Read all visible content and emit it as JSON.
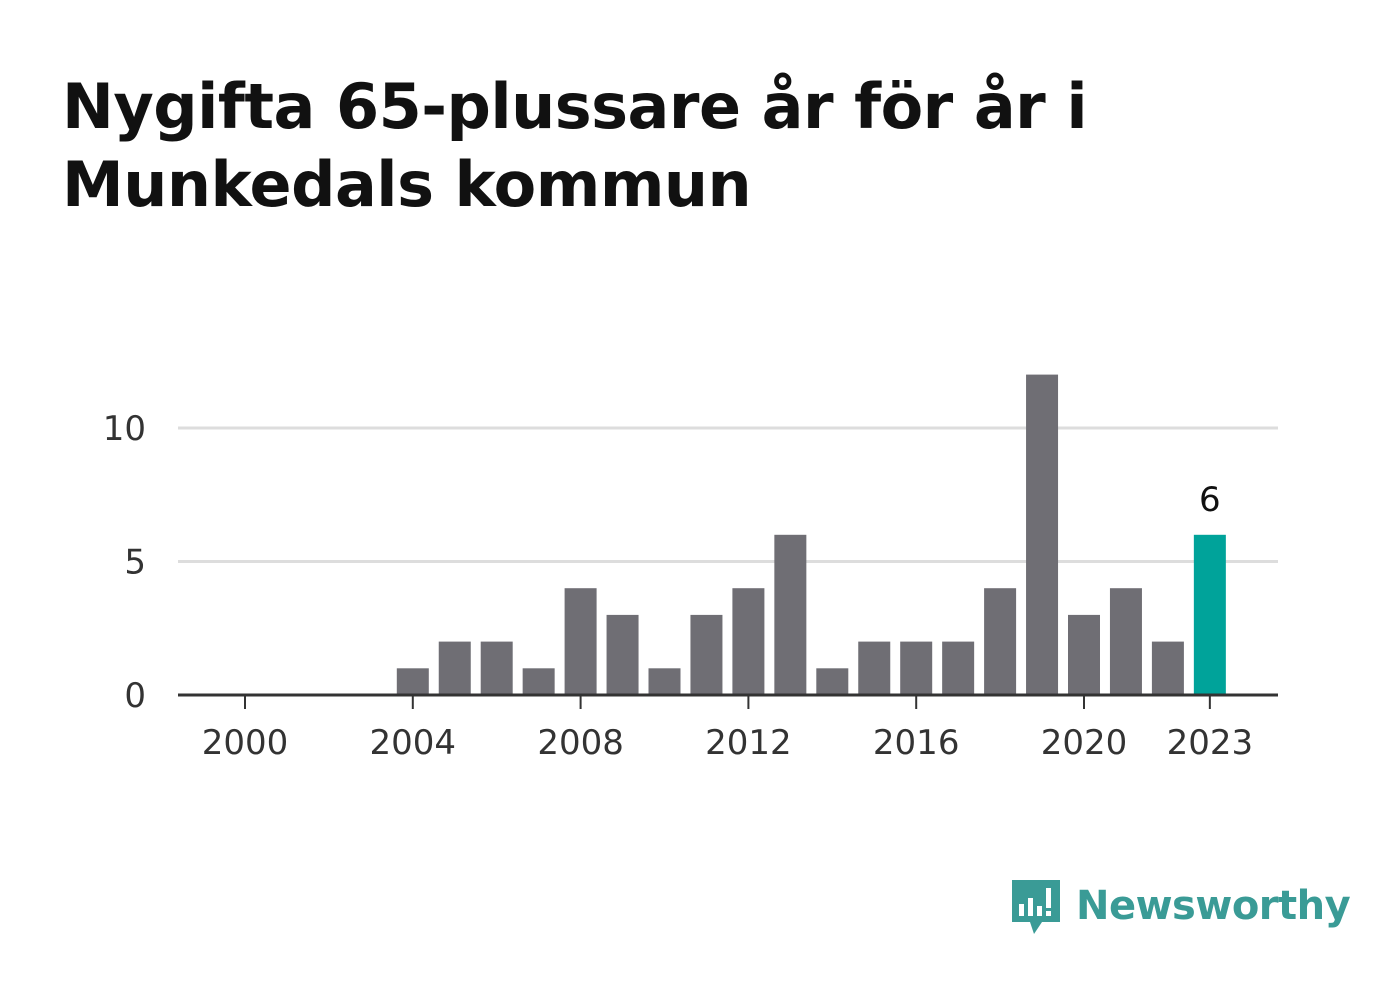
{
  "title": "Nygifta 65-plussare år för år i Munkedals kommun",
  "colors": {
    "bar": "#6f6e74",
    "highlight": "#00a39a",
    "grid": "#dddddd",
    "axis": "#333333",
    "logo": "#3a9b96"
  },
  "brand": {
    "name": "Newsworthy",
    "icon": "bar-chart-speech-bubble-icon"
  },
  "chart_data": {
    "type": "bar",
    "title": "Nygifta 65-plussare år för år i Munkedals kommun",
    "xlabel": "",
    "ylabel": "",
    "categories": [
      2000,
      2001,
      2002,
      2003,
      2004,
      2005,
      2006,
      2007,
      2008,
      2009,
      2010,
      2011,
      2012,
      2013,
      2014,
      2015,
      2016,
      2017,
      2018,
      2019,
      2020,
      2021,
      2022,
      2023
    ],
    "values": [
      0,
      0,
      0,
      0,
      1,
      2,
      2,
      1,
      4,
      3,
      1,
      3,
      4,
      6,
      1,
      2,
      2,
      2,
      4,
      12,
      3,
      4,
      2,
      6
    ],
    "x_ticks": [
      2000,
      2004,
      2008,
      2012,
      2016,
      2020,
      2023
    ],
    "y_ticks": [
      0,
      5,
      10
    ],
    "ylim": [
      0,
      12
    ],
    "grid": true,
    "highlight": {
      "category": 2023,
      "label": "6"
    }
  }
}
